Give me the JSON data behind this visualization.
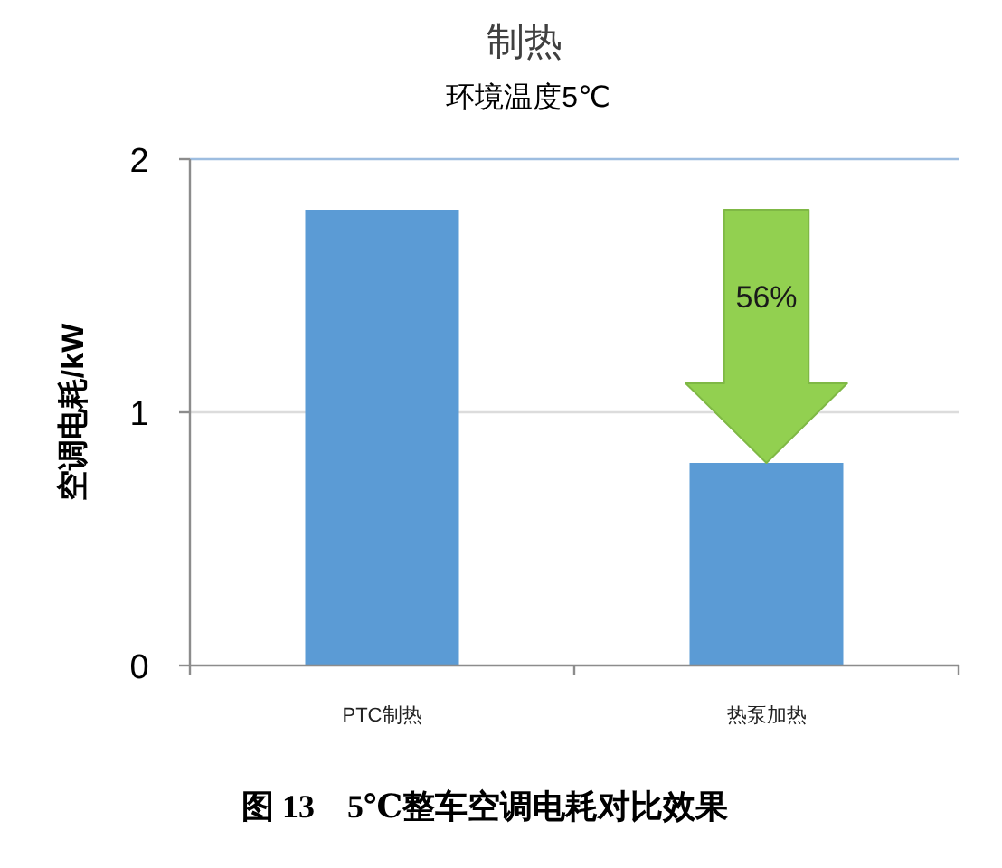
{
  "chart_data": {
    "type": "bar",
    "title": "制热",
    "subtitle": "环境温度5℃",
    "ylabel": "空调电耗/kW",
    "categories": [
      "PTC制热",
      "热泵加热"
    ],
    "values": [
      1.8,
      0.8
    ],
    "color": "#5b9bd5",
    "ylim": [
      0,
      2
    ],
    "yticks": [
      0,
      1,
      2
    ],
    "grid": "y",
    "annotations": [
      "56%",
      "图 13　5℃整车空调电耗对比效果"
    ]
  }
}
